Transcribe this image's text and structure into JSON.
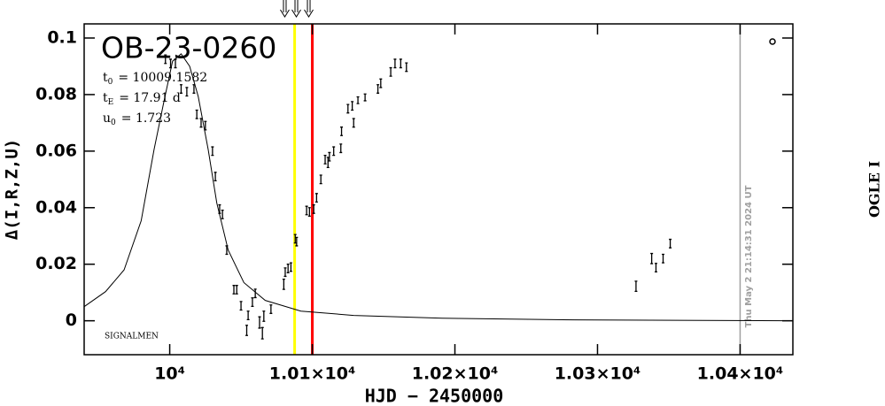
{
  "chart_data": {
    "type": "scatter",
    "title": "OB-23-0260",
    "parameters": [
      {
        "symbol": "t",
        "sub": "0",
        "text": "= 10009.1582"
      },
      {
        "symbol": "t",
        "sub": "E",
        "text": "= 17.91 d"
      },
      {
        "symbol": "u",
        "sub": "0",
        "text": "= 1.723"
      }
    ],
    "note": "SIGNALMEN",
    "timestamp": "Thu May  2 21:14:31 2024 UT",
    "side_label": "OGLE I",
    "x_label": "HJD − 2450000",
    "y_label": "Δ(I,R,Z,U)",
    "xlim": [
      9940,
      10437
    ],
    "ylim": [
      -0.012,
      0.105
    ],
    "xticks": [
      {
        "value": 10000,
        "label": "10⁴"
      },
      {
        "value": 10100,
        "label": "1.01×10⁴"
      },
      {
        "value": 10200,
        "label": "1.02×10⁴"
      },
      {
        "value": 10300,
        "label": "1.03×10⁴"
      },
      {
        "value": 10400,
        "label": "1.04×10⁴"
      }
    ],
    "yticks": [
      0,
      0.02,
      0.04,
      0.06,
      0.08,
      0.1
    ],
    "series": [
      {
        "name": "OGLE I",
        "color": "#000000",
        "x": [
          9997,
          10000.6,
          10004,
          10008,
          10012,
          10017,
          10019,
          10022,
          10025,
          10030,
          10032,
          10035,
          10037,
          10040,
          10045,
          10047,
          10050,
          10054,
          10055,
          10058,
          10060,
          10063,
          10065,
          10066,
          10071,
          10080,
          10081,
          10083,
          10085,
          10088,
          10089,
          10096,
          10098,
          10101,
          10103,
          10106,
          10109,
          10111,
          10112,
          10115,
          10120,
          10120.5,
          10125,
          10128,
          10129,
          10132,
          10137,
          10146,
          10148,
          10155,
          10158,
          10162,
          10166,
          10327,
          10338,
          10341,
          10346,
          10351
        ],
        "values": [
          0.0925,
          0.091,
          0.091,
          0.082,
          0.081,
          0.082,
          0.073,
          0.07,
          0.069,
          0.06,
          0.051,
          0.0395,
          0.0376,
          0.025,
          0.011,
          0.011,
          0.0053,
          -0.0034,
          0.0019,
          0.0066,
          0.0097,
          -0.0006,
          -0.0044,
          0.0016,
          0.0041,
          0.0129,
          0.0172,
          0.0185,
          0.019,
          0.029,
          0.028,
          0.039,
          0.0385,
          0.0395,
          0.0435,
          0.05,
          0.057,
          0.056,
          0.058,
          0.06,
          0.061,
          0.067,
          0.075,
          0.076,
          0.07,
          0.078,
          0.079,
          0.082,
          0.084,
          0.088,
          0.091,
          0.091,
          0.0897,
          0.0122,
          0.022,
          0.0188,
          0.022,
          0.0273
        ],
        "errors": [
          0.0015,
          0.0015,
          0.0015,
          0.0015,
          0.0015,
          0.0015,
          0.0015,
          0.0015,
          0.0015,
          0.0015,
          0.0015,
          0.0015,
          0.0015,
          0.0015,
          0.0015,
          0.0015,
          0.0015,
          0.0018,
          0.0015,
          0.0015,
          0.0015,
          0.002,
          0.002,
          0.0018,
          0.0015,
          0.0018,
          0.0015,
          0.0015,
          0.0015,
          0.0015,
          0.0015,
          0.0015,
          0.0015,
          0.0015,
          0.0015,
          0.0015,
          0.0015,
          0.0018,
          0.0015,
          0.0015,
          0.0015,
          0.0015,
          0.0015,
          0.0015,
          0.0015,
          0.0012,
          0.0012,
          0.0015,
          0.0015,
          0.0015,
          0.0015,
          0.0015,
          0.0015,
          0.0018,
          0.0018,
          0.0015,
          0.0015,
          0.0015
        ]
      }
    ],
    "model": {
      "color": "#000000",
      "x": [
        9940,
        9955,
        9968,
        9980,
        9989,
        9996,
        10002,
        10008,
        10014,
        10020,
        10027,
        10033,
        10041,
        10052,
        10067,
        10092,
        10129,
        10191,
        10284,
        10437
      ],
      "values": [
        0.005,
        0.0103,
        0.018,
        0.0354,
        0.0605,
        0.0777,
        0.0918,
        0.0944,
        0.09,
        0.0793,
        0.0605,
        0.0417,
        0.025,
        0.0135,
        0.0072,
        0.0034,
        0.0019,
        0.0009,
        0.0003,
        0
      ]
    },
    "vlines": [
      {
        "x": 10087.6,
        "color": "#ffff00"
      },
      {
        "x": 10100,
        "color": "#ff0000"
      },
      {
        "x": 10400,
        "color": "#a0a0a0"
      }
    ],
    "arrows": [
      10080.7,
      10088.8,
      10097.5
    ]
  }
}
